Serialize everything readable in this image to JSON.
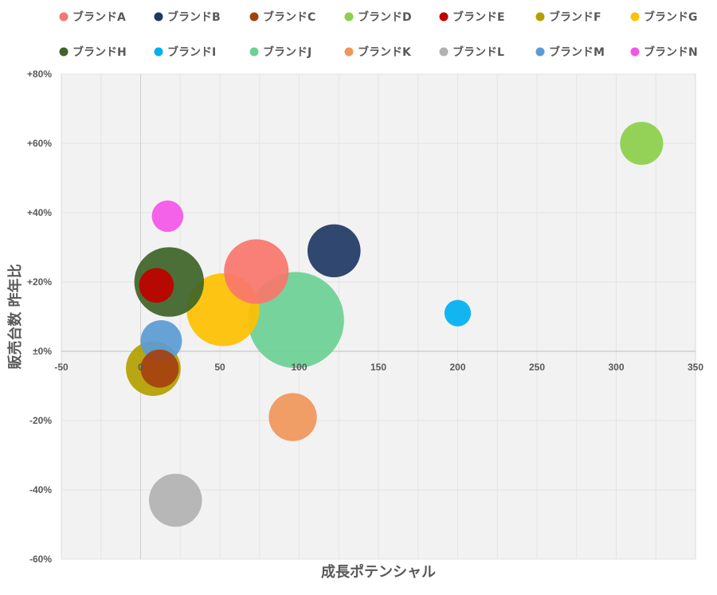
{
  "chart_data": {
    "type": "bubble",
    "title": "",
    "xlabel": "成長ポテンシャル",
    "ylabel": "販売台数 昨年比",
    "xlim": [
      -50,
      350
    ],
    "ylim": [
      -60,
      80
    ],
    "xticks": [
      -50,
      0,
      50,
      100,
      150,
      200,
      250,
      300,
      350
    ],
    "yticks": [
      80,
      60,
      40,
      20,
      0,
      -20,
      -40,
      -60
    ],
    "ytick_labels": [
      "+80%",
      "+60%",
      "+40%",
      "+20%",
      "±0%",
      "-20%",
      "-40%",
      "-60%"
    ],
    "x_minor_grid": true,
    "legend_position": "top",
    "plot_background": "#f2f2f2",
    "series": [
      {
        "name": "ブランドA",
        "color": "#f8766d",
        "x": 73,
        "y": 23,
        "size": 78
      },
      {
        "name": "ブランドB",
        "color": "#203864",
        "x": 122,
        "y": 29,
        "size": 64
      },
      {
        "name": "ブランドC",
        "color": "#a5400f",
        "x": 12,
        "y": -5,
        "size": 46
      },
      {
        "name": "ブランドD",
        "color": "#8ccf4a",
        "x": 316,
        "y": 60,
        "size": 52
      },
      {
        "name": "ブランドE",
        "color": "#c00000",
        "x": 10,
        "y": 19,
        "size": 42
      },
      {
        "name": "ブランドF",
        "color": "#b3a000",
        "x": 8,
        "y": -5,
        "size": 66
      },
      {
        "name": "ブランドG",
        "color": "#ffc000",
        "x": 52,
        "y": 12,
        "size": 88
      },
      {
        "name": "ブランドH",
        "color": "#3e6428",
        "x": 18,
        "y": 20,
        "size": 84
      },
      {
        "name": "ブランドI",
        "color": "#00b0f0",
        "x": 200,
        "y": 11,
        "size": 32
      },
      {
        "name": "ブランドJ",
        "color": "#6dd095",
        "x": 98,
        "y": 9,
        "size": 116
      },
      {
        "name": "ブランドK",
        "color": "#f0965a",
        "x": 96,
        "y": -19,
        "size": 58
      },
      {
        "name": "ブランドL",
        "color": "#b2b2b2",
        "x": 22,
        "y": -43,
        "size": 64
      },
      {
        "name": "ブランドM",
        "color": "#5b9bd5",
        "x": 13,
        "y": 3,
        "size": 50
      },
      {
        "name": "ブランドN",
        "color": "#f456e8",
        "x": 17,
        "y": 39,
        "size": 38
      }
    ]
  }
}
